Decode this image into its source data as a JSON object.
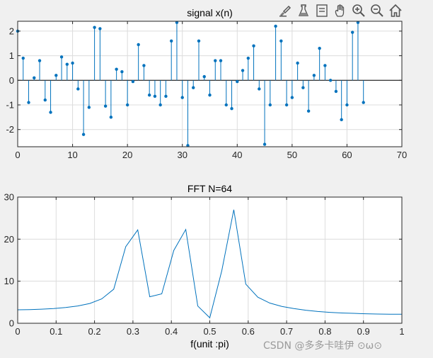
{
  "toolbar": {
    "icons": [
      "brush-icon",
      "flask-icon",
      "data-tips-icon",
      "pan-hand-icon",
      "zoom-in-icon",
      "zoom-out-icon",
      "home-icon"
    ]
  },
  "watermark": "CSDN @多多卡哇伊 ⊙ω⊙",
  "colors": {
    "series": "#0072BD",
    "grid": "#dcdcdc",
    "axes_bg": "#ffffff",
    "figure_bg": "#f0f0f0"
  },
  "chart_data": [
    {
      "type": "stem",
      "title": "signal x(n)",
      "xlabel": "",
      "ylabel": "",
      "xlim": [
        0,
        70
      ],
      "ylim": [
        -2.7,
        2.4
      ],
      "xticks": [
        0,
        10,
        20,
        30,
        40,
        50,
        60,
        70
      ],
      "yticks": [
        -2,
        -1,
        0,
        1,
        2
      ],
      "grid": true,
      "x": [
        0,
        1,
        2,
        3,
        4,
        5,
        6,
        7,
        8,
        9,
        10,
        11,
        12,
        13,
        14,
        15,
        16,
        17,
        18,
        19,
        20,
        21,
        22,
        23,
        24,
        25,
        26,
        27,
        28,
        29,
        30,
        31,
        32,
        33,
        34,
        35,
        36,
        37,
        38,
        39,
        40,
        41,
        42,
        43,
        44,
        45,
        46,
        47,
        48,
        49,
        50,
        51,
        52,
        53,
        54,
        55,
        56,
        57,
        58,
        59,
        60,
        61,
        62,
        63
      ],
      "values": [
        2.0,
        0.9,
        -0.9,
        0.1,
        0.8,
        -0.8,
        -1.3,
        0.2,
        0.95,
        0.65,
        0.7,
        -0.35,
        -2.2,
        -1.1,
        2.15,
        2.1,
        -1.05,
        -1.5,
        0.45,
        0.35,
        -1.0,
        -0.05,
        1.45,
        0.6,
        -0.6,
        -0.65,
        -1.0,
        -0.65,
        1.6,
        2.35,
        -0.7,
        -2.65,
        -0.3,
        1.6,
        0.15,
        -0.6,
        0.8,
        0.8,
        -1.0,
        -1.15,
        -0.05,
        0.4,
        0.9,
        1.4,
        -0.35,
        -2.6,
        -1.0,
        2.2,
        1.6,
        -1.0,
        -0.7,
        0.7,
        -0.3,
        -1.25,
        0.2,
        1.3,
        0.6,
        0.0,
        -0.45,
        -1.6,
        -1.0,
        1.95,
        2.35,
        -0.9
      ]
    },
    {
      "type": "line",
      "title": "FFT N=64",
      "xlabel": "f(unit :pi)",
      "ylabel": "",
      "xlim": [
        0,
        1
      ],
      "ylim": [
        0,
        30
      ],
      "xticks": [
        0,
        0.1,
        0.2,
        0.3,
        0.4,
        0.5,
        0.6,
        0.7,
        0.8,
        0.9,
        1
      ],
      "yticks": [
        0,
        10,
        20,
        30
      ],
      "grid": true,
      "x": [
        0,
        0.03125,
        0.0625,
        0.09375,
        0.125,
        0.15625,
        0.1875,
        0.21875,
        0.25,
        0.28125,
        0.3125,
        0.34375,
        0.375,
        0.40625,
        0.4375,
        0.46875,
        0.5,
        0.53125,
        0.5625,
        0.59375,
        0.625,
        0.65625,
        0.6875,
        0.71875,
        0.75,
        0.78125,
        0.8125,
        0.84375,
        0.875,
        0.90625,
        0.9375,
        0.96875,
        1
      ],
      "values": [
        3.2,
        3.25,
        3.35,
        3.5,
        3.75,
        4.1,
        4.7,
        5.8,
        8.1,
        18.2,
        22.2,
        6.3,
        7.0,
        17.3,
        22.3,
        4.1,
        1.3,
        12.5,
        27.0,
        9.3,
        6.2,
        4.8,
        4.0,
        3.5,
        3.1,
        2.8,
        2.6,
        2.45,
        2.35,
        2.25,
        2.2,
        2.15,
        2.15
      ]
    }
  ]
}
